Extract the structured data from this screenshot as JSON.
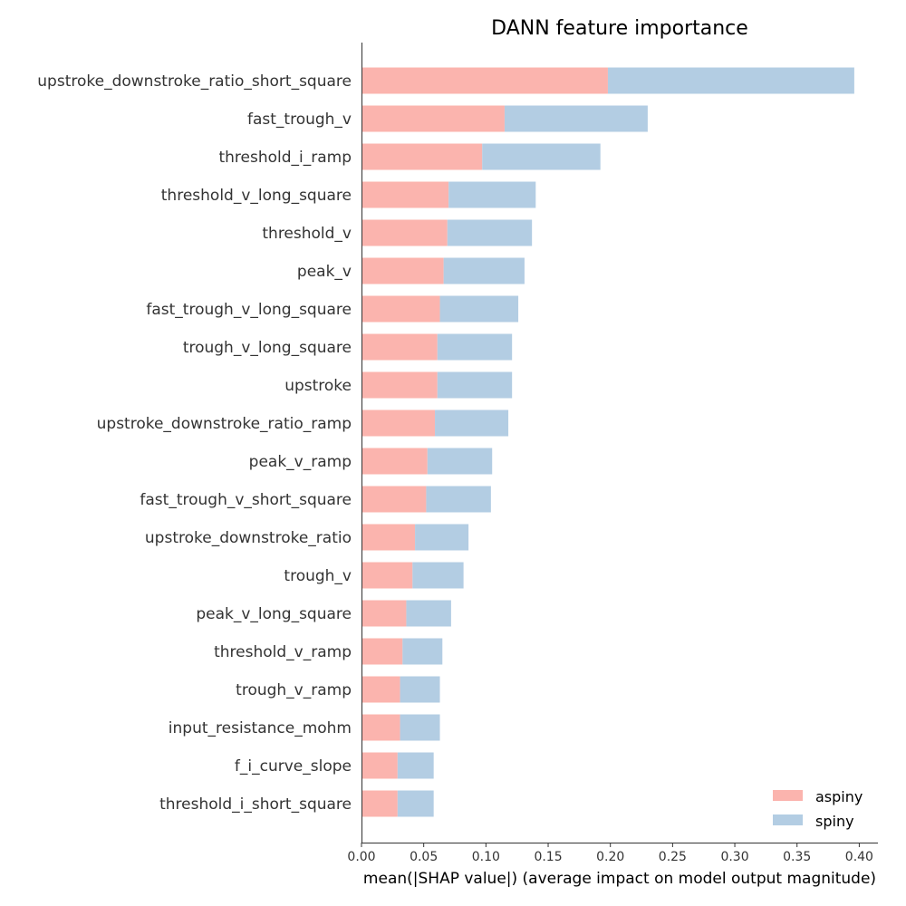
{
  "chart_data": {
    "type": "bar",
    "stacked": true,
    "orientation": "horizontal",
    "title": "DANN feature importance",
    "xlabel": "mean(|SHAP value|) (average impact on model output magnitude)",
    "ylabel": "",
    "xlim": [
      0,
      0.415
    ],
    "xticks": [
      "0.00",
      "0.05",
      "0.10",
      "0.15",
      "0.20",
      "0.25",
      "0.30",
      "0.35",
      "0.40"
    ],
    "xtick_values": [
      0,
      0.05,
      0.1,
      0.15,
      0.2,
      0.25,
      0.3,
      0.35,
      0.4
    ],
    "grid": false,
    "legend_position": "bottom-right",
    "categories": [
      "upstroke_downstroke_ratio_short_square",
      "fast_trough_v",
      "threshold_i_ramp",
      "threshold_v_long_square",
      "threshold_v",
      "peak_v",
      "fast_trough_v_long_square",
      "trough_v_long_square",
      "upstroke",
      "upstroke_downstroke_ratio_ramp",
      "peak_v_ramp",
      "fast_trough_v_short_square",
      "upstroke_downstroke_ratio",
      "trough_v",
      "peak_v_long_square",
      "threshold_v_ramp",
      "trough_v_ramp",
      "input_resistance_mohm",
      "f_i_curve_slope",
      "threshold_i_short_square"
    ],
    "series": [
      {
        "name": "aspiny",
        "color": "#fbb4ae",
        "values": [
          0.198,
          0.115,
          0.097,
          0.07,
          0.069,
          0.066,
          0.063,
          0.061,
          0.061,
          0.059,
          0.053,
          0.052,
          0.043,
          0.041,
          0.036,
          0.033,
          0.031,
          0.031,
          0.029,
          0.029
        ]
      },
      {
        "name": "spiny",
        "color": "#b3cde3",
        "values": [
          0.198,
          0.115,
          0.095,
          0.07,
          0.068,
          0.065,
          0.063,
          0.06,
          0.06,
          0.059,
          0.052,
          0.052,
          0.043,
          0.041,
          0.036,
          0.032,
          0.032,
          0.032,
          0.029,
          0.029
        ]
      }
    ]
  }
}
